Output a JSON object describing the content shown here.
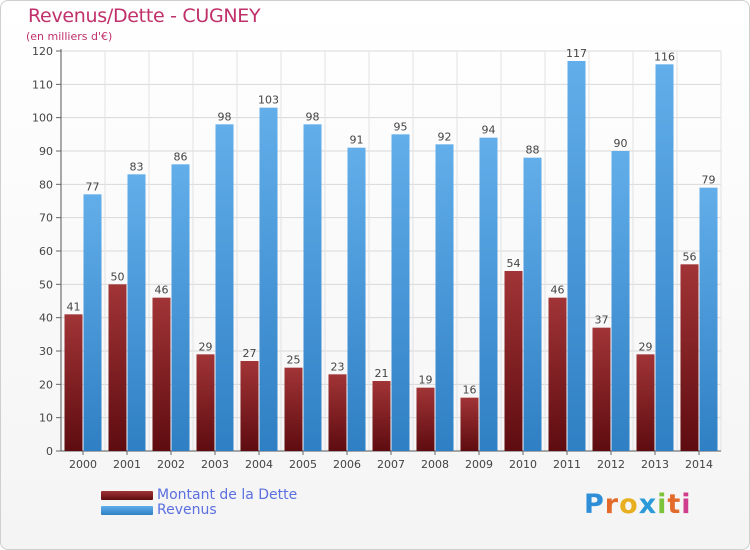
{
  "header": {
    "title": "Revenus/Dette - CUGNEY",
    "subtitle": "(en milliers d'€)"
  },
  "legend": {
    "debt_label": "Montant de la Dette",
    "revenue_label": "Revenus"
  },
  "logo": {
    "letters": [
      "P",
      "r",
      "o",
      "x",
      "i",
      "t",
      "i"
    ],
    "colors": [
      "#2e8fd8",
      "#e36a2a",
      "#e8b020",
      "#2c9ad8",
      "#7cc23a",
      "#e36a2a",
      "#d03d8c"
    ]
  },
  "colors": {
    "debt": "#7a1a1e",
    "debt_light": "#a83a3c",
    "revenue": "#3f93d6",
    "revenue_light": "#66b0ea"
  },
  "chart_data": {
    "type": "bar",
    "title": "Revenus/Dette - CUGNEY",
    "subtitle": "(en milliers d'€)",
    "xlabel": "",
    "ylabel": "",
    "ylim": [
      0,
      120
    ],
    "yticks": [
      "0",
      "10",
      "20",
      "30",
      "40",
      "50",
      "60",
      "70",
      "80",
      "90",
      "100",
      "110",
      "120"
    ],
    "categories": [
      "2000",
      "2001",
      "2002",
      "2003",
      "2004",
      "2005",
      "2006",
      "2007",
      "2008",
      "2009",
      "2010",
      "2011",
      "2012",
      "2013",
      "2014"
    ],
    "series": [
      {
        "name": "Montant de la Dette",
        "values": [
          41,
          50,
          46,
          29,
          27,
          25,
          23,
          21,
          19,
          16,
          54,
          46,
          37,
          29,
          56
        ]
      },
      {
        "name": "Revenus",
        "values": [
          77,
          83,
          86,
          98,
          103,
          98,
          91,
          95,
          92,
          94,
          88,
          117,
          90,
          116,
          79
        ]
      }
    ],
    "grid": true,
    "legend_position": "bottom-left"
  }
}
